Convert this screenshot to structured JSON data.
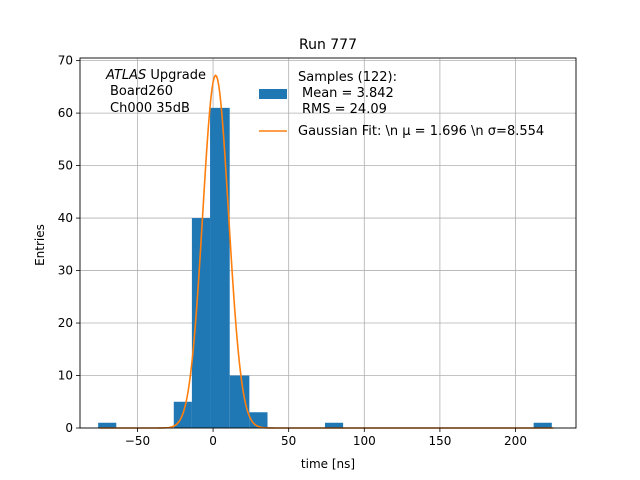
{
  "chart_data": {
    "type": "bar",
    "title": "Run 777",
    "xlabel": "time [ns]",
    "ylabel": "Entries",
    "xlim": [
      -88,
      240
    ],
    "ylim": [
      0,
      70.5
    ],
    "xticks": [
      -50,
      0,
      50,
      100,
      150,
      200
    ],
    "yticks": [
      0,
      10,
      20,
      30,
      40,
      50,
      60,
      70
    ],
    "grid": true,
    "legend_placement": "top-right",
    "annotation": {
      "italic": "ATLAS",
      "rest": " Upgrade",
      "line2": "Board260",
      "line3": "Ch000 35dB"
    },
    "histogram": {
      "name_lines": [
        "Samples (122):",
        "Mean = 3.842",
        "RMS = 24.09"
      ],
      "color": "#1f77b4",
      "bins": [
        {
          "left": -76,
          "right": -64,
          "count": 1
        },
        {
          "left": -26,
          "right": -14,
          "count": 5
        },
        {
          "left": -14,
          "right": -2,
          "count": 40
        },
        {
          "left": -2,
          "right": 11,
          "count": 61
        },
        {
          "left": 11,
          "right": 24,
          "count": 10
        },
        {
          "left": 24,
          "right": 36,
          "count": 3
        },
        {
          "left": 74,
          "right": 86,
          "count": 1
        },
        {
          "left": 212,
          "right": 224,
          "count": 1
        }
      ]
    },
    "fit": {
      "name": "Gaussian Fit: \\n μ = 1.696 \\n σ=8.554",
      "color": "#ff7f0e",
      "mu": 1.696,
      "sigma": 8.554,
      "amplitude": 67.2,
      "x_range": [
        -75,
        225
      ]
    }
  }
}
